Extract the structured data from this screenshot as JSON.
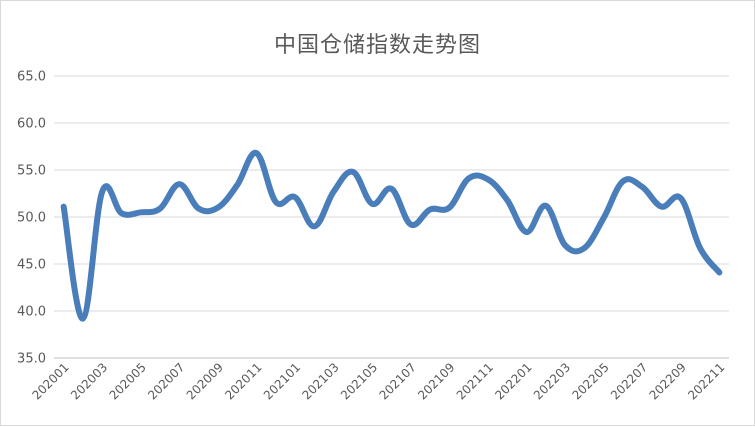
{
  "chart_data": {
    "type": "line",
    "title": "中国仓储指数走势图",
    "xlabel": "",
    "ylabel": "",
    "ylim": [
      35.0,
      65.0
    ],
    "yticks": [
      "35.0",
      "40.0",
      "45.0",
      "50.0",
      "55.0",
      "60.0",
      "65.0"
    ],
    "xtick_labels": [
      "202001",
      "202003",
      "202005",
      "202007",
      "202009",
      "202011",
      "202101",
      "202103",
      "202105",
      "202107",
      "202109",
      "202111",
      "202201",
      "202203",
      "202205",
      "202207",
      "202209",
      "202211"
    ],
    "grid": true,
    "legend": "none",
    "line_color": "#4a7ebb",
    "series": [
      {
        "x": [
          "202001",
          "202002",
          "202003",
          "202004",
          "202005",
          "202006",
          "202007",
          "202008",
          "202009",
          "202010",
          "202011",
          "202012",
          "202101",
          "202102",
          "202103",
          "202104",
          "202105",
          "202106",
          "202107",
          "202108",
          "202109",
          "202110",
          "202111",
          "202112",
          "202201",
          "202202",
          "202203",
          "202204",
          "202205",
          "202206",
          "202207",
          "202208",
          "202209",
          "202210",
          "202211"
        ],
        "values": [
          51.1,
          39.2,
          52.7,
          50.4,
          50.5,
          50.9,
          53.5,
          50.9,
          51.0,
          53.4,
          56.8,
          51.6,
          52.1,
          49.0,
          52.7,
          54.8,
          51.4,
          53.0,
          49.2,
          50.8,
          51.0,
          54.1,
          54.0,
          51.8,
          48.4,
          51.2,
          47.0,
          46.7,
          49.9,
          53.8,
          53.2,
          51.1,
          52.0,
          46.7,
          44.1
        ]
      }
    ]
  }
}
